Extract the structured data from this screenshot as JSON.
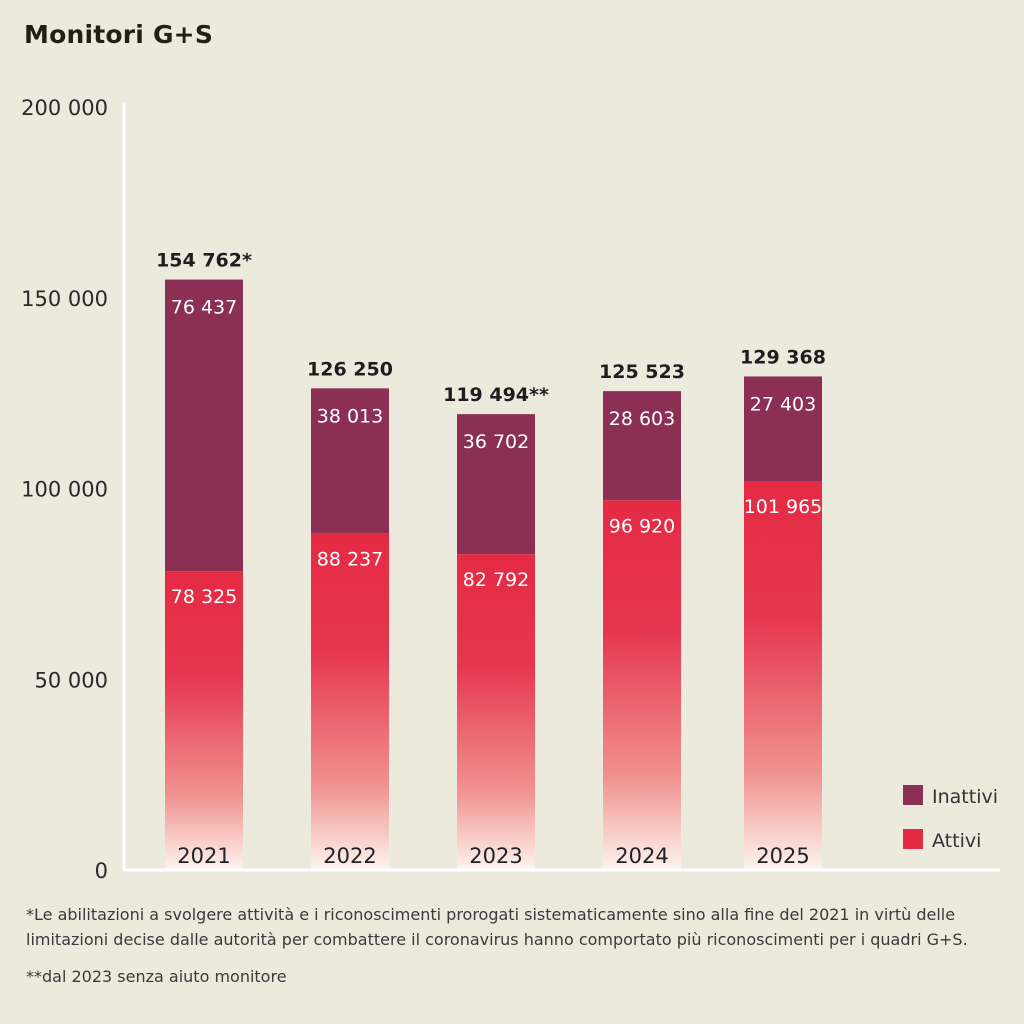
{
  "title": "Monitori G+S",
  "colors": {
    "background": "#ece9dd",
    "inattivi": "#8b2f54",
    "attivi": "#e52a44",
    "axis": "#ffffff"
  },
  "chart_data": {
    "type": "bar",
    "stacked": true,
    "title": "Monitori G+S",
    "xlabel": "",
    "ylabel": "",
    "ylim": [
      0,
      200000
    ],
    "yticks": [
      0,
      50000,
      100000,
      150000,
      200000
    ],
    "ytick_labels": [
      "0",
      "50 000",
      "100 000",
      "150 000",
      "200 000"
    ],
    "grid": false,
    "legend_position": "bottom-right",
    "categories": [
      "2021",
      "2022",
      "2023",
      "2024",
      "2025"
    ],
    "series": [
      {
        "name": "Attivi",
        "color": "#e52a44",
        "values": [
          78325,
          88237,
          82792,
          96920,
          101965
        ],
        "labels": [
          "78 325",
          "88 237",
          "82 792",
          "96 920",
          "101 965"
        ]
      },
      {
        "name": "Inattivi",
        "color": "#8b2f54",
        "values": [
          76437,
          38013,
          36702,
          28603,
          27403
        ],
        "labels": [
          "76 437",
          "38 013",
          "36 702",
          "28 603",
          "27 403"
        ]
      }
    ],
    "totals": [
      154762,
      126250,
      119494,
      125523,
      129368
    ],
    "total_labels": [
      "154 762*",
      "126 250",
      "119 494**",
      "125 523",
      "129 368"
    ],
    "legend": [
      "Inattivi",
      "Attivi"
    ]
  },
  "footnotes": [
    "*Le abilitazioni a svolgere attività e i riconoscimenti prorogati sistematicamente sino alla fine del 2021 in virtù delle limitazioni decise dalle autorità per combattere il coronavirus hanno comportato più riconoscimenti per i quadri G+S.",
    "**dal 2023 senza aiuto monitore"
  ]
}
